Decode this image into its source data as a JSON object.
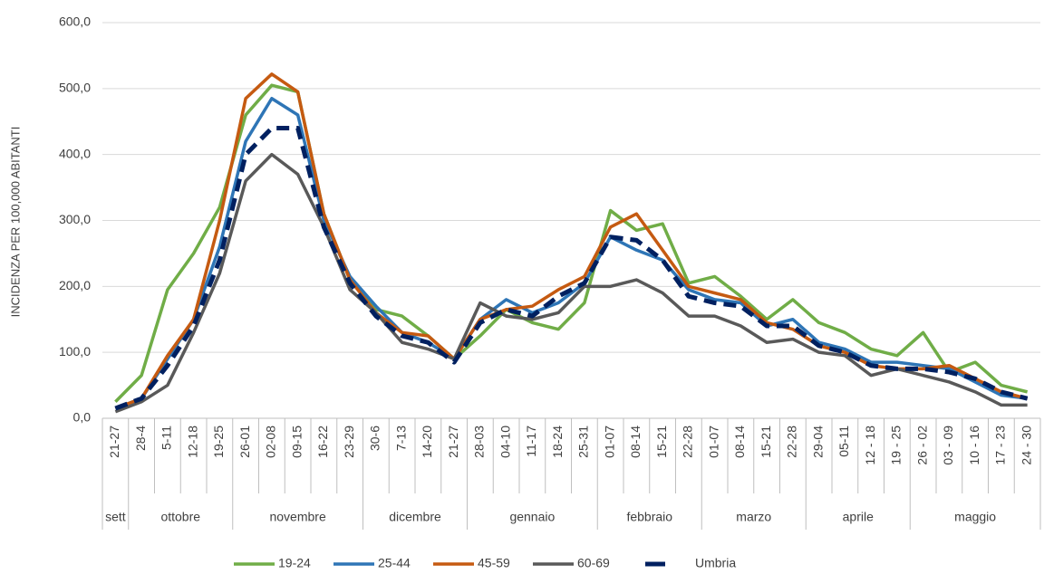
{
  "chart_data": {
    "type": "line",
    "y_label": "INCIDENZA PER 100,000 ABITANTI",
    "groups": [
      {
        "name": "sett",
        "weeks": [
          "21-27"
        ]
      },
      {
        "name": "ottobre",
        "weeks": [
          "28-4",
          "5-11",
          "12-18",
          "19-25"
        ]
      },
      {
        "name": "novembre",
        "weeks": [
          "26-01",
          "02-08",
          "09-15",
          "16-22",
          "23-29"
        ]
      },
      {
        "name": "dicembre",
        "weeks": [
          "30-6",
          "7-13",
          "14-20",
          "21-27"
        ]
      },
      {
        "name": "gennaio",
        "weeks": [
          "28-03",
          "04-10",
          "11-17",
          "18-24",
          "25-31"
        ]
      },
      {
        "name": "febbraio",
        "weeks": [
          "01-07",
          "08-14",
          "15-21",
          "22-28"
        ]
      },
      {
        "name": "marzo",
        "weeks": [
          "01-07",
          "08-14",
          "15-21",
          "22-28"
        ]
      },
      {
        "name": "aprile",
        "weeks": [
          "29-04",
          "05-11",
          "12 - 18",
          "19 - 25"
        ]
      },
      {
        "name": "maggio",
        "weeks": [
          "26 - 02",
          "03 - 09",
          "10 - 16",
          "17 - 23",
          "24 - 30"
        ]
      }
    ],
    "series": [
      {
        "name": "19-24",
        "color": "#70ad47",
        "values": [
          25,
          65,
          195,
          250,
          320,
          460,
          505,
          495,
          310,
          210,
          165,
          155,
          125,
          90,
          125,
          165,
          145,
          135,
          175,
          315,
          285,
          295,
          205,
          215,
          185,
          150,
          180,
          145,
          130,
          105,
          95,
          130,
          70,
          85,
          50,
          40
        ]
      },
      {
        "name": "25-44",
        "color": "#2e75b6",
        "values": [
          15,
          30,
          90,
          150,
          260,
          420,
          485,
          460,
          300,
          215,
          170,
          130,
          115,
          90,
          150,
          180,
          160,
          175,
          205,
          275,
          255,
          240,
          195,
          180,
          175,
          140,
          150,
          115,
          105,
          85,
          85,
          80,
          75,
          55,
          35,
          30
        ]
      },
      {
        "name": "45-59",
        "color": "#c55a11",
        "values": [
          15,
          30,
          95,
          150,
          300,
          485,
          522,
          495,
          310,
          210,
          160,
          130,
          125,
          90,
          150,
          165,
          170,
          195,
          215,
          290,
          310,
          255,
          200,
          190,
          180,
          145,
          135,
          110,
          100,
          80,
          75,
          75,
          80,
          60,
          40,
          30
        ]
      },
      {
        "name": "60-69",
        "color": "#595959",
        "values": [
          10,
          25,
          50,
          130,
          220,
          360,
          400,
          370,
          290,
          195,
          160,
          115,
          105,
          90,
          175,
          155,
          150,
          160,
          200,
          200,
          210,
          190,
          155,
          155,
          140,
          115,
          120,
          100,
          95,
          65,
          75,
          65,
          55,
          40,
          20,
          20
        ]
      },
      {
        "name": "Umbria",
        "color": "#002060",
        "dashed": true,
        "values": [
          15,
          30,
          80,
          140,
          240,
          400,
          440,
          440,
          290,
          205,
          155,
          125,
          115,
          85,
          145,
          165,
          155,
          185,
          205,
          275,
          270,
          240,
          185,
          175,
          170,
          140,
          140,
          110,
          100,
          80,
          75,
          75,
          70,
          60,
          40,
          30
        ]
      }
    ],
    "ylim": [
      0,
      600
    ],
    "yticks": [
      {
        "value": 0,
        "label": "0,0"
      },
      {
        "value": 100,
        "label": "100,0"
      },
      {
        "value": 200,
        "label": "200,0"
      },
      {
        "value": 300,
        "label": "300,0"
      },
      {
        "value": 400,
        "label": "400,0"
      },
      {
        "value": 500,
        "label": "500,0"
      },
      {
        "value": 600,
        "label": "600,0"
      }
    ],
    "grid": true
  }
}
